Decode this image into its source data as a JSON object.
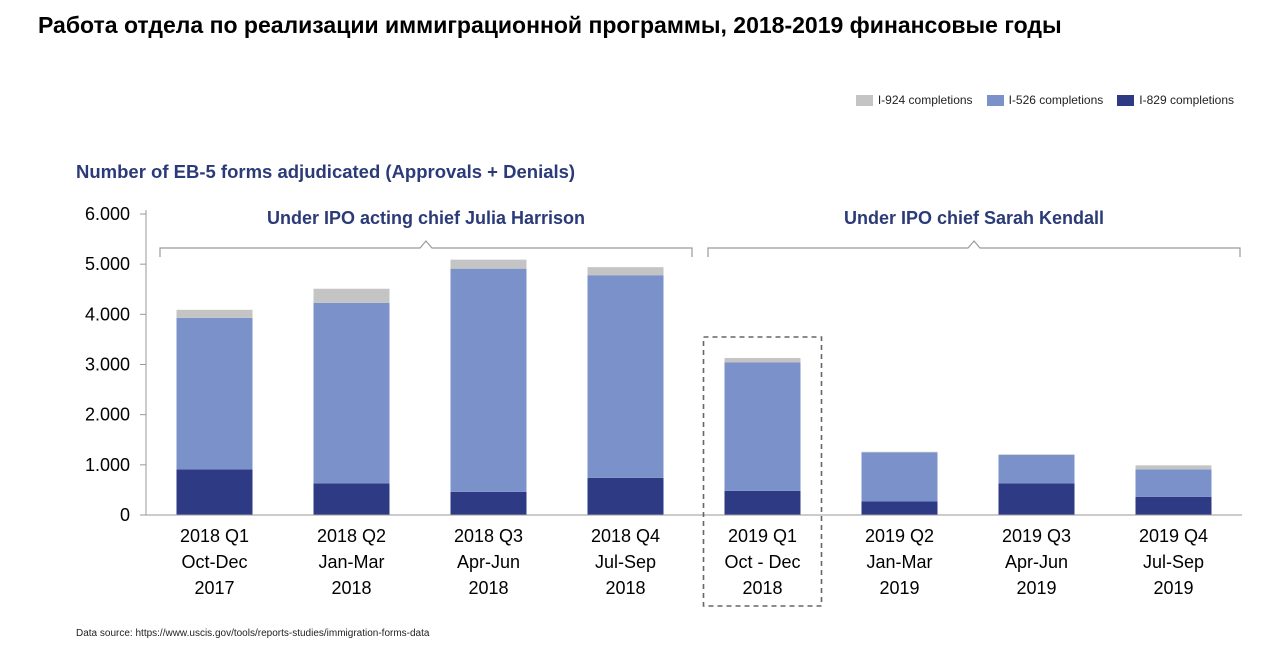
{
  "title": "Работа отдела по реализации иммиграционной программы, 2018-2019 финансовые годы",
  "legend": [
    {
      "label": "I-924 completions",
      "color": "#c4c4c4"
    },
    {
      "label": "I-526 completions",
      "color": "#7b91c9"
    },
    {
      "label": "I-829 completions",
      "color": "#2f3a85"
    }
  ],
  "source": "Data source: https://www.uscis.gov/tools/reports-studies/immigration-forms-data",
  "chart_data": {
    "type": "bar",
    "stacked": true,
    "title": "Number of EB-5 forms adjudicated (Approvals + Denials)",
    "categories": [
      [
        "2018 Q1",
        "Oct-Dec",
        "2017"
      ],
      [
        "2018 Q2",
        "Jan-Mar",
        "2018"
      ],
      [
        "2018 Q3",
        "Apr-Jun",
        "2018"
      ],
      [
        "2018 Q4",
        "Jul-Sep",
        "2018"
      ],
      [
        "2019 Q1",
        "Oct - Dec",
        "2018"
      ],
      [
        "2019 Q2",
        "Jan-Mar",
        "2019"
      ],
      [
        "2019 Q3",
        "Apr-Jun",
        "2019"
      ],
      [
        "2019 Q4",
        "Jul-Sep",
        "2019"
      ]
    ],
    "series": [
      {
        "name": "I-829 completions",
        "color": "#2f3a85",
        "values": [
          910,
          630,
          460,
          740,
          480,
          270,
          630,
          360
        ]
      },
      {
        "name": "I-526 completions",
        "color": "#7b91c9",
        "values": [
          3020,
          3600,
          4450,
          4040,
          2560,
          980,
          570,
          550
        ]
      },
      {
        "name": "I-924 completions",
        "color": "#c4c4c4",
        "values": [
          160,
          280,
          180,
          160,
          90,
          10,
          10,
          80
        ]
      }
    ],
    "yticks": [
      "0",
      "1.000",
      "2.000",
      "3.000",
      "4.000",
      "5.000",
      "6.000"
    ],
    "ylim": [
      0,
      6000
    ],
    "annotations": [
      {
        "text": "Under IPO acting chief Julia Harrison",
        "from": 0,
        "to": 3
      },
      {
        "text": "Under IPO chief Sarah Kendall",
        "from": 4,
        "to": 7
      }
    ],
    "highlight_category": 4,
    "grid": false,
    "legend_position": "top-right"
  }
}
